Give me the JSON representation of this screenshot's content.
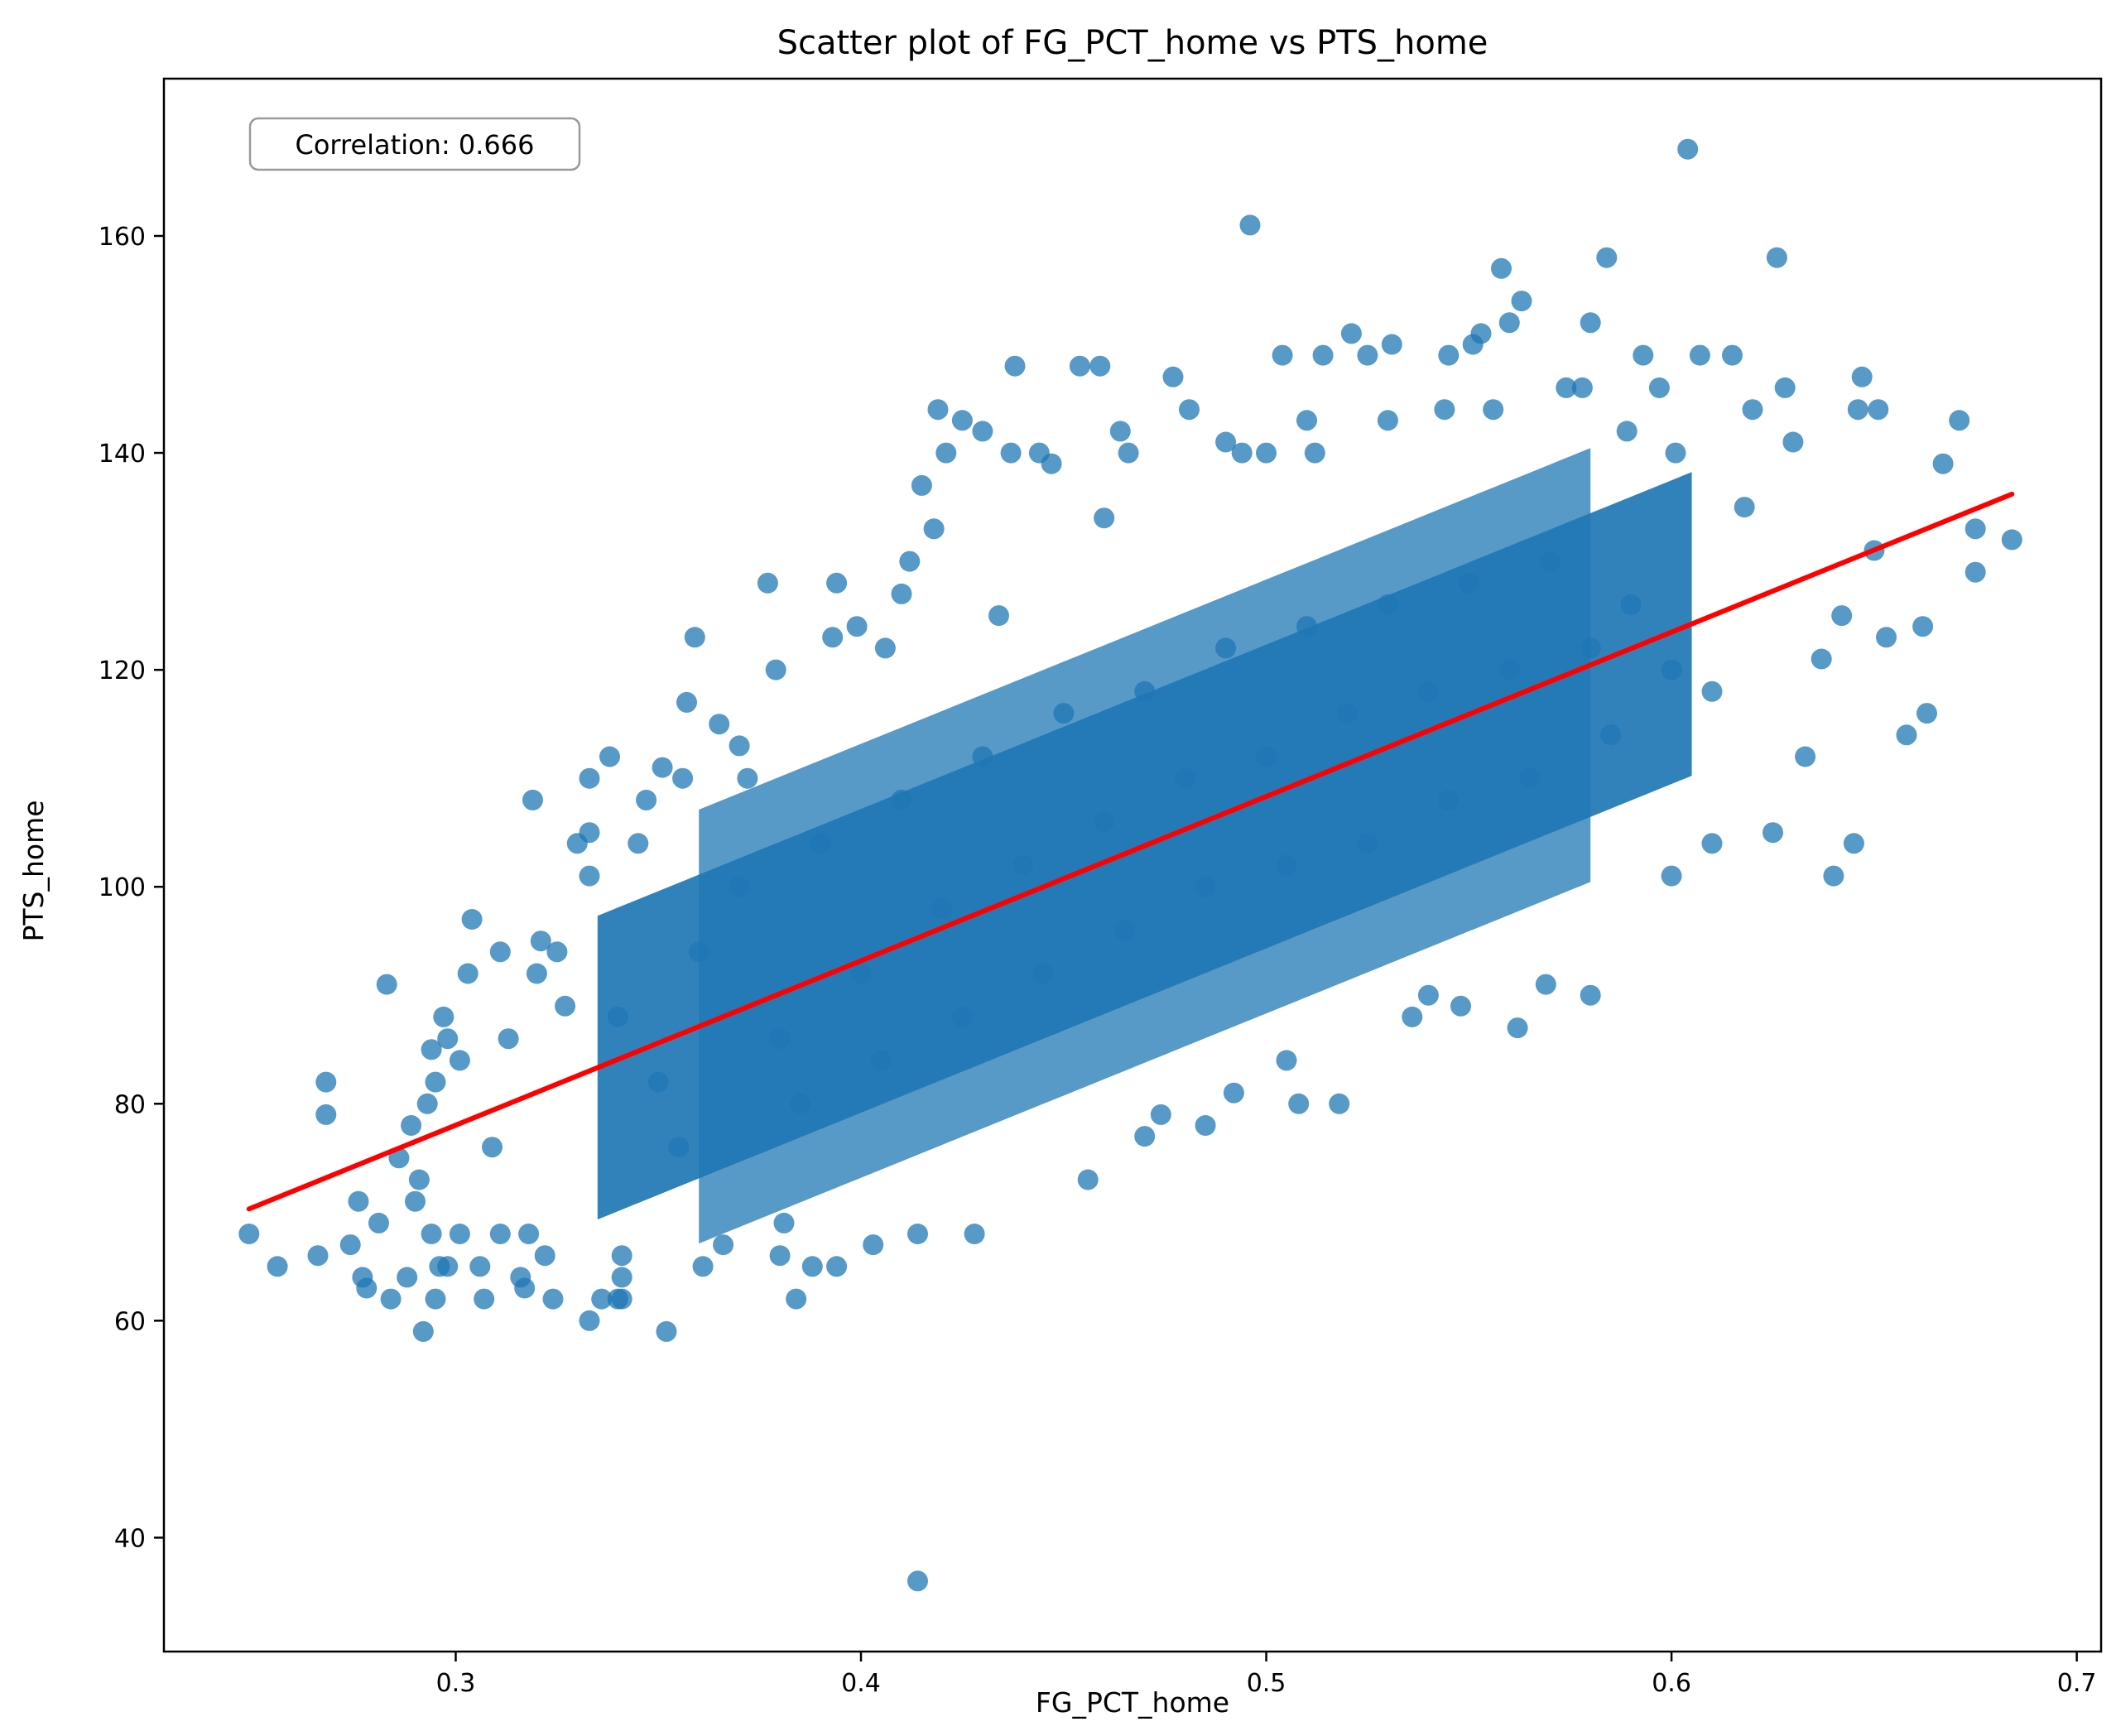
{
  "chart_data": {
    "type": "scatter",
    "title": "Scatter plot of FG_PCT_home vs PTS_home",
    "xlabel": "FG_PCT_home",
    "ylabel": "PTS_home",
    "xlim": [
      0.228,
      0.706
    ],
    "ylim": [
      29.5,
      174.5
    ],
    "x_ticks": [
      0.3,
      0.4,
      0.5,
      0.6,
      0.7
    ],
    "x_tick_labels": [
      "0.3",
      "0.4",
      "0.5",
      "0.6",
      "0.7"
    ],
    "y_ticks": [
      40,
      60,
      80,
      100,
      120,
      140,
      160
    ],
    "y_tick_labels": [
      "40",
      "60",
      "80",
      "100",
      "120",
      "140",
      "160"
    ],
    "grid": false,
    "annotation": "Correlation: 0.666",
    "point_color": "#1f77b4",
    "line_color": "#ff0000",
    "regression_line": {
      "x": [
        0.249,
        0.684
      ],
      "y": [
        70.3,
        136.2
      ]
    },
    "points": [
      [
        0.249,
        68
      ],
      [
        0.256,
        65
      ],
      [
        0.266,
        66
      ],
      [
        0.268,
        82
      ],
      [
        0.268,
        79
      ],
      [
        0.274,
        67
      ],
      [
        0.276,
        71
      ],
      [
        0.277,
        64
      ],
      [
        0.278,
        63
      ],
      [
        0.281,
        69
      ],
      [
        0.283,
        91
      ],
      [
        0.284,
        62
      ],
      [
        0.286,
        75
      ],
      [
        0.288,
        64
      ],
      [
        0.289,
        78
      ],
      [
        0.29,
        71
      ],
      [
        0.291,
        73
      ],
      [
        0.292,
        59
      ],
      [
        0.293,
        80
      ],
      [
        0.294,
        85
      ],
      [
        0.294,
        68
      ],
      [
        0.295,
        62
      ],
      [
        0.295,
        82
      ],
      [
        0.296,
        65
      ],
      [
        0.297,
        88
      ],
      [
        0.298,
        86
      ],
      [
        0.298,
        65
      ],
      [
        0.301,
        84
      ],
      [
        0.301,
        68
      ],
      [
        0.303,
        92
      ],
      [
        0.304,
        97
      ],
      [
        0.306,
        65
      ],
      [
        0.307,
        62
      ],
      [
        0.309,
        76
      ],
      [
        0.311,
        94
      ],
      [
        0.311,
        68
      ],
      [
        0.313,
        86
      ],
      [
        0.316,
        64
      ],
      [
        0.317,
        63
      ],
      [
        0.318,
        68
      ],
      [
        0.319,
        108
      ],
      [
        0.32,
        92
      ],
      [
        0.321,
        95
      ],
      [
        0.322,
        66
      ],
      [
        0.324,
        62
      ],
      [
        0.325,
        94
      ],
      [
        0.327,
        89
      ],
      [
        0.33,
        104
      ],
      [
        0.333,
        110
      ],
      [
        0.333,
        105
      ],
      [
        0.333,
        101
      ],
      [
        0.333,
        60
      ],
      [
        0.336,
        62
      ],
      [
        0.338,
        112
      ],
      [
        0.34,
        62
      ],
      [
        0.341,
        64
      ],
      [
        0.341,
        66
      ],
      [
        0.341,
        62
      ],
      [
        0.345,
        104
      ],
      [
        0.347,
        108
      ],
      [
        0.351,
        111
      ],
      [
        0.352,
        59
      ],
      [
        0.356,
        110
      ],
      [
        0.357,
        117
      ],
      [
        0.359,
        123
      ],
      [
        0.361,
        65
      ],
      [
        0.365,
        115
      ],
      [
        0.366,
        67
      ],
      [
        0.37,
        113
      ],
      [
        0.372,
        110
      ],
      [
        0.377,
        128
      ],
      [
        0.379,
        120
      ],
      [
        0.38,
        66
      ],
      [
        0.381,
        69
      ],
      [
        0.384,
        62
      ],
      [
        0.388,
        65
      ],
      [
        0.393,
        123
      ],
      [
        0.394,
        128
      ],
      [
        0.394,
        65
      ],
      [
        0.399,
        124
      ],
      [
        0.403,
        67
      ],
      [
        0.406,
        122
      ],
      [
        0.41,
        127
      ],
      [
        0.412,
        130
      ],
      [
        0.414,
        68
      ],
      [
        0.414,
        36
      ],
      [
        0.415,
        137
      ],
      [
        0.418,
        133
      ],
      [
        0.419,
        144
      ],
      [
        0.421,
        140
      ],
      [
        0.425,
        143
      ],
      [
        0.428,
        68
      ],
      [
        0.43,
        142
      ],
      [
        0.434,
        125
      ],
      [
        0.437,
        140
      ],
      [
        0.438,
        148
      ],
      [
        0.444,
        140
      ],
      [
        0.447,
        139
      ],
      [
        0.454,
        148
      ],
      [
        0.456,
        73
      ],
      [
        0.459,
        148
      ],
      [
        0.46,
        134
      ],
      [
        0.464,
        142
      ],
      [
        0.466,
        140
      ],
      [
        0.47,
        77
      ],
      [
        0.474,
        79
      ],
      [
        0.477,
        147
      ],
      [
        0.481,
        144
      ],
      [
        0.485,
        78
      ],
      [
        0.49,
        141
      ],
      [
        0.492,
        81
      ],
      [
        0.494,
        140
      ],
      [
        0.496,
        161
      ],
      [
        0.5,
        140
      ],
      [
        0.505,
        84
      ],
      [
        0.504,
        149
      ],
      [
        0.508,
        80
      ],
      [
        0.51,
        143
      ],
      [
        0.512,
        140
      ],
      [
        0.514,
        149
      ],
      [
        0.518,
        80
      ],
      [
        0.521,
        151
      ],
      [
        0.525,
        149
      ],
      [
        0.53,
        143
      ],
      [
        0.531,
        150
      ],
      [
        0.536,
        88
      ],
      [
        0.54,
        90
      ],
      [
        0.544,
        144
      ],
      [
        0.545,
        149
      ],
      [
        0.548,
        89
      ],
      [
        0.551,
        150
      ],
      [
        0.553,
        151
      ],
      [
        0.556,
        144
      ],
      [
        0.558,
        157
      ],
      [
        0.56,
        152
      ],
      [
        0.562,
        87
      ],
      [
        0.563,
        154
      ],
      [
        0.569,
        91
      ],
      [
        0.574,
        146
      ],
      [
        0.578,
        146
      ],
      [
        0.58,
        152
      ],
      [
        0.58,
        90
      ],
      [
        0.584,
        158
      ],
      [
        0.589,
        142
      ],
      [
        0.593,
        149
      ],
      [
        0.597,
        146
      ],
      [
        0.6,
        101
      ],
      [
        0.601,
        140
      ],
      [
        0.604,
        168
      ],
      [
        0.607,
        149
      ],
      [
        0.61,
        104
      ],
      [
        0.615,
        149
      ],
      [
        0.618,
        135
      ],
      [
        0.62,
        144
      ],
      [
        0.625,
        105
      ],
      [
        0.626,
        158
      ],
      [
        0.628,
        146
      ],
      [
        0.63,
        141
      ],
      [
        0.633,
        112
      ],
      [
        0.637,
        121
      ],
      [
        0.64,
        101
      ],
      [
        0.642,
        125
      ],
      [
        0.645,
        104
      ],
      [
        0.646,
        144
      ],
      [
        0.647,
        147
      ],
      [
        0.65,
        131
      ],
      [
        0.651,
        144
      ],
      [
        0.653,
        123
      ],
      [
        0.658,
        114
      ],
      [
        0.662,
        124
      ],
      [
        0.663,
        116
      ],
      [
        0.667,
        139
      ],
      [
        0.671,
        143
      ],
      [
        0.675,
        133
      ],
      [
        0.675,
        129
      ],
      [
        0.684,
        132
      ],
      [
        0.34,
        88
      ],
      [
        0.35,
        82
      ],
      [
        0.36,
        94
      ],
      [
        0.355,
        76
      ],
      [
        0.37,
        100
      ],
      [
        0.38,
        86
      ],
      [
        0.39,
        104
      ],
      [
        0.385,
        80
      ],
      [
        0.4,
        92
      ],
      [
        0.41,
        108
      ],
      [
        0.405,
        84
      ],
      [
        0.42,
        98
      ],
      [
        0.43,
        112
      ],
      [
        0.425,
        88
      ],
      [
        0.44,
        102
      ],
      [
        0.45,
        116
      ],
      [
        0.445,
        92
      ],
      [
        0.46,
        106
      ],
      [
        0.47,
        118
      ],
      [
        0.465,
        96
      ],
      [
        0.48,
        110
      ],
      [
        0.49,
        122
      ],
      [
        0.485,
        100
      ],
      [
        0.5,
        112
      ],
      [
        0.51,
        124
      ],
      [
        0.505,
        102
      ],
      [
        0.52,
        116
      ],
      [
        0.53,
        126
      ],
      [
        0.525,
        104
      ],
      [
        0.54,
        118
      ],
      [
        0.55,
        128
      ],
      [
        0.545,
        108
      ],
      [
        0.56,
        120
      ],
      [
        0.57,
        130
      ],
      [
        0.565,
        110
      ],
      [
        0.58,
        122
      ],
      [
        0.59,
        126
      ],
      [
        0.585,
        114
      ],
      [
        0.6,
        120
      ],
      [
        0.61,
        118
      ]
    ]
  }
}
